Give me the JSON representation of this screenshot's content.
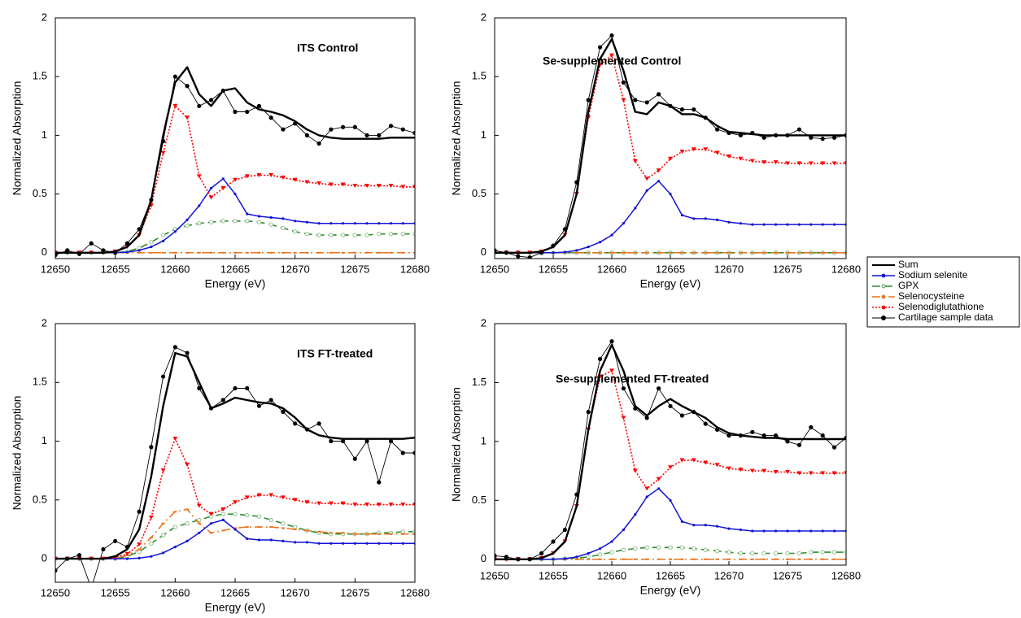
{
  "chart_data": [
    {
      "type": "line",
      "title": "ITS Control",
      "x_label": "Energy (eV)",
      "y_label": "Normalized Absorption",
      "x": [
        12650,
        12651,
        12652,
        12653,
        12654,
        12655,
        12656,
        12657,
        12658,
        12659,
        12660,
        12661,
        12662,
        12663,
        12664,
        12665,
        12666,
        12667,
        12668,
        12669,
        12670,
        12671,
        12672,
        12673,
        12674,
        12675,
        12676,
        12677,
        12678,
        12679,
        12680
      ],
      "xlim": [
        12650,
        12680
      ],
      "xticks": [
        12650,
        12655,
        12660,
        12665,
        12670,
        12675,
        12680
      ],
      "ylim": [
        -0.05,
        2
      ],
      "yticks": [
        0,
        0.5,
        1,
        1.5,
        2
      ],
      "series": [
        {
          "name": "Sum",
          "color": "#000000",
          "values": [
            0,
            0,
            0,
            0,
            0,
            0.01,
            0.05,
            0.15,
            0.45,
            1.0,
            1.45,
            1.58,
            1.35,
            1.25,
            1.38,
            1.4,
            1.28,
            1.22,
            1.2,
            1.17,
            1.12,
            1.05,
            1.0,
            0.98,
            0.97,
            0.97,
            0.97,
            0.97,
            0.98,
            0.98,
            0.98
          ]
        },
        {
          "name": "Sodium selenite",
          "color": "#1414d6",
          "values": [
            0,
            0,
            0,
            0,
            0,
            0,
            0.005,
            0.02,
            0.05,
            0.1,
            0.18,
            0.28,
            0.4,
            0.55,
            0.63,
            0.5,
            0.33,
            0.31,
            0.3,
            0.29,
            0.27,
            0.26,
            0.25,
            0.25,
            0.25,
            0.25,
            0.25,
            0.25,
            0.25,
            0.25,
            0.25
          ]
        },
        {
          "name": "GPX",
          "color": "#2e8b2e",
          "values": [
            0,
            0,
            0,
            0,
            0,
            0,
            0.01,
            0.04,
            0.09,
            0.15,
            0.2,
            0.23,
            0.25,
            0.26,
            0.27,
            0.27,
            0.27,
            0.26,
            0.24,
            0.21,
            0.18,
            0.16,
            0.15,
            0.15,
            0.15,
            0.15,
            0.15,
            0.16,
            0.16,
            0.16,
            0.16
          ]
        },
        {
          "name": "Selenocysteine",
          "color": "#e8731c",
          "values": [
            0,
            0,
            0,
            0,
            0,
            0,
            0,
            0,
            0,
            0,
            0,
            0,
            0,
            0,
            0,
            0,
            0,
            0,
            0,
            0,
            0,
            0,
            0,
            0,
            0,
            0,
            0,
            0,
            0,
            0,
            0
          ]
        },
        {
          "name": "Selenodiglutathione",
          "color": "#ff0000",
          "values": [
            0,
            0,
            0,
            0,
            0,
            0.01,
            0.05,
            0.15,
            0.4,
            0.85,
            1.25,
            1.15,
            0.65,
            0.47,
            0.55,
            0.62,
            0.65,
            0.66,
            0.66,
            0.64,
            0.62,
            0.6,
            0.59,
            0.58,
            0.58,
            0.57,
            0.57,
            0.57,
            0.57,
            0.56,
            0.56
          ]
        },
        {
          "name": "Cartilage sample data",
          "color": "#000000",
          "values": [
            -0.02,
            0.02,
            -0.01,
            0.08,
            0.02,
            0.0,
            0.08,
            0.2,
            0.45,
            0.95,
            1.5,
            1.42,
            1.25,
            1.3,
            1.38,
            1.2,
            1.2,
            1.25,
            1.15,
            1.05,
            1.1,
            1.0,
            0.93,
            1.05,
            1.07,
            1.07,
            1.0,
            1.0,
            1.08,
            1.05,
            1.02
          ]
        }
      ]
    },
    {
      "type": "line",
      "title": "Se-supplemented Control",
      "x_label": "Energy (eV)",
      "y_label": "Normalized Absorption",
      "x": [
        12650,
        12651,
        12652,
        12653,
        12654,
        12655,
        12656,
        12657,
        12658,
        12659,
        12660,
        12661,
        12662,
        12663,
        12664,
        12665,
        12666,
        12667,
        12668,
        12669,
        12670,
        12671,
        12672,
        12673,
        12674,
        12675,
        12676,
        12677,
        12678,
        12679,
        12680
      ],
      "xlim": [
        12650,
        12680
      ],
      "xticks": [
        12650,
        12655,
        12660,
        12665,
        12670,
        12675,
        12680
      ],
      "ylim": [
        -0.05,
        2
      ],
      "yticks": [
        0,
        0.5,
        1,
        1.5,
        2
      ],
      "series": [
        {
          "name": "Sum",
          "color": "#000000",
          "values": [
            0,
            0,
            0,
            0,
            0.01,
            0.05,
            0.15,
            0.5,
            1.2,
            1.65,
            1.82,
            1.55,
            1.2,
            1.18,
            1.28,
            1.25,
            1.18,
            1.18,
            1.15,
            1.08,
            1.03,
            1.02,
            1.01,
            1.0,
            1.0,
            1.0,
            1.0,
            1.0,
            1.0,
            1.0,
            1.0
          ]
        },
        {
          "name": "Sodium selenite",
          "color": "#1414d6",
          "values": [
            0,
            0,
            0,
            0,
            0,
            0,
            0.005,
            0.02,
            0.05,
            0.09,
            0.15,
            0.25,
            0.38,
            0.53,
            0.61,
            0.5,
            0.32,
            0.29,
            0.29,
            0.28,
            0.26,
            0.25,
            0.24,
            0.24,
            0.24,
            0.24,
            0.24,
            0.24,
            0.24,
            0.24,
            0.24
          ]
        },
        {
          "name": "GPX",
          "color": "#2e8b2e",
          "values": [
            0,
            0,
            0,
            0,
            0,
            0,
            0,
            0,
            0,
            0,
            0,
            0,
            0,
            0,
            0,
            0,
            0,
            0,
            0,
            0,
            0,
            0,
            0,
            0,
            0,
            0,
            0,
            0,
            0,
            0,
            0
          ]
        },
        {
          "name": "Selenocysteine",
          "color": "#e8731c",
          "values": [
            0,
            0,
            0,
            0,
            0,
            0,
            0,
            0,
            0,
            0,
            0,
            0,
            0,
            0,
            0,
            0,
            0,
            0,
            0,
            0,
            0,
            0,
            0,
            0,
            0,
            0,
            0,
            0,
            0,
            0,
            0
          ]
        },
        {
          "name": "Selenodiglutathione",
          "color": "#ff0000",
          "values": [
            0,
            0,
            0,
            0,
            0.01,
            0.05,
            0.15,
            0.5,
            1.15,
            1.6,
            1.68,
            1.3,
            0.78,
            0.63,
            0.7,
            0.8,
            0.86,
            0.88,
            0.88,
            0.85,
            0.82,
            0.8,
            0.78,
            0.77,
            0.77,
            0.76,
            0.76,
            0.76,
            0.76,
            0.76,
            0.76
          ]
        },
        {
          "name": "Cartilage sample data",
          "color": "#000000",
          "values": [
            0.02,
            0.0,
            -0.03,
            -0.04,
            0.0,
            0.06,
            0.2,
            0.6,
            1.3,
            1.75,
            1.85,
            1.45,
            1.3,
            1.28,
            1.35,
            1.25,
            1.22,
            1.22,
            1.15,
            1.05,
            1.02,
            1.0,
            1.02,
            0.98,
            1.0,
            1.0,
            1.05,
            0.98,
            0.97,
            0.98,
            1.0
          ]
        }
      ]
    },
    {
      "type": "line",
      "title": "ITS FT-treated",
      "x_label": "Energy (eV)",
      "y_label": "Normalized Absorption",
      "x": [
        12650,
        12651,
        12652,
        12653,
        12654,
        12655,
        12656,
        12657,
        12658,
        12659,
        12660,
        12661,
        12662,
        12663,
        12664,
        12665,
        12666,
        12667,
        12668,
        12669,
        12670,
        12671,
        12672,
        12673,
        12674,
        12675,
        12676,
        12677,
        12678,
        12679,
        12680
      ],
      "xlim": [
        12650,
        12680
      ],
      "xticks": [
        12650,
        12655,
        12660,
        12665,
        12670,
        12675,
        12680
      ],
      "ylim": [
        -0.2,
        2
      ],
      "yticks": [
        0,
        0.5,
        1,
        1.5,
        2
      ],
      "series": [
        {
          "name": "Sum",
          "color": "#000000",
          "values": [
            0,
            0,
            0,
            0,
            0,
            0.02,
            0.08,
            0.25,
            0.7,
            1.3,
            1.75,
            1.72,
            1.5,
            1.28,
            1.32,
            1.37,
            1.35,
            1.33,
            1.32,
            1.28,
            1.2,
            1.1,
            1.05,
            1.03,
            1.02,
            1.02,
            1.02,
            1.02,
            1.02,
            1.02,
            1.03
          ]
        },
        {
          "name": "Sodium selenite",
          "color": "#1414d6",
          "values": [
            0,
            0,
            0,
            0,
            0,
            0,
            0,
            0.005,
            0.02,
            0.05,
            0.1,
            0.15,
            0.22,
            0.3,
            0.33,
            0.25,
            0.17,
            0.16,
            0.16,
            0.15,
            0.14,
            0.14,
            0.13,
            0.13,
            0.13,
            0.13,
            0.13,
            0.13,
            0.13,
            0.13,
            0.13
          ]
        },
        {
          "name": "GPX",
          "color": "#2e8b2e",
          "values": [
            0,
            0,
            0,
            0,
            0,
            0,
            0.02,
            0.06,
            0.13,
            0.2,
            0.27,
            0.3,
            0.33,
            0.36,
            0.38,
            0.38,
            0.37,
            0.36,
            0.33,
            0.3,
            0.27,
            0.24,
            0.22,
            0.21,
            0.21,
            0.21,
            0.21,
            0.22,
            0.22,
            0.23,
            0.23
          ]
        },
        {
          "name": "Selenocysteine",
          "color": "#e8731c",
          "values": [
            0,
            0,
            0,
            0,
            0,
            0,
            0.03,
            0.08,
            0.18,
            0.3,
            0.4,
            0.42,
            0.3,
            0.22,
            0.24,
            0.26,
            0.27,
            0.27,
            0.27,
            0.26,
            0.25,
            0.24,
            0.23,
            0.22,
            0.22,
            0.21,
            0.21,
            0.21,
            0.21,
            0.21,
            0.21
          ]
        },
        {
          "name": "Selenodiglutathione",
          "color": "#ff0000",
          "values": [
            0,
            0,
            0,
            0,
            0,
            0.01,
            0.04,
            0.12,
            0.35,
            0.75,
            1.02,
            0.8,
            0.45,
            0.38,
            0.42,
            0.48,
            0.52,
            0.54,
            0.54,
            0.52,
            0.5,
            0.48,
            0.47,
            0.47,
            0.47,
            0.46,
            0.46,
            0.46,
            0.46,
            0.46,
            0.46
          ]
        },
        {
          "name": "Cartilage sample data",
          "color": "#000000",
          "values": [
            -0.1,
            0.0,
            0.03,
            -0.25,
            0.08,
            0.15,
            0.1,
            0.4,
            0.95,
            1.55,
            1.8,
            1.75,
            1.45,
            1.28,
            1.35,
            1.45,
            1.45,
            1.3,
            1.35,
            1.25,
            1.15,
            1.1,
            1.15,
            1.0,
            1.0,
            0.85,
            1.0,
            0.65,
            1.0,
            0.9,
            0.9
          ]
        }
      ]
    },
    {
      "type": "line",
      "title": "Se-supplemented FT-treated",
      "x_label": "Energy (eV)",
      "y_label": "Normalized Absorption",
      "x": [
        12650,
        12651,
        12652,
        12653,
        12654,
        12655,
        12656,
        12657,
        12658,
        12659,
        12660,
        12661,
        12662,
        12663,
        12664,
        12665,
        12666,
        12667,
        12668,
        12669,
        12670,
        12671,
        12672,
        12673,
        12674,
        12675,
        12676,
        12677,
        12678,
        12679,
        12680
      ],
      "xlim": [
        12650,
        12680
      ],
      "xticks": [
        12650,
        12655,
        12660,
        12665,
        12670,
        12675,
        12680
      ],
      "ylim": [
        -0.05,
        2
      ],
      "yticks": [
        0,
        0.5,
        1,
        1.5,
        2
      ],
      "series": [
        {
          "name": "Sum",
          "color": "#000000",
          "values": [
            0,
            0,
            0,
            0,
            0.01,
            0.05,
            0.15,
            0.45,
            1.1,
            1.6,
            1.82,
            1.6,
            1.3,
            1.22,
            1.3,
            1.36,
            1.3,
            1.25,
            1.2,
            1.12,
            1.07,
            1.05,
            1.04,
            1.03,
            1.03,
            1.02,
            1.02,
            1.02,
            1.02,
            1.02,
            1.02
          ]
        },
        {
          "name": "Sodium selenite",
          "color": "#1414d6",
          "values": [
            0,
            0,
            0,
            0,
            0,
            0,
            0.005,
            0.02,
            0.05,
            0.09,
            0.15,
            0.25,
            0.38,
            0.53,
            0.6,
            0.5,
            0.32,
            0.29,
            0.29,
            0.28,
            0.26,
            0.25,
            0.24,
            0.24,
            0.24,
            0.24,
            0.24,
            0.24,
            0.24,
            0.24,
            0.24
          ]
        },
        {
          "name": "GPX",
          "color": "#2e8b2e",
          "values": [
            0,
            0,
            0,
            0,
            0,
            0,
            0.005,
            0.01,
            0.02,
            0.04,
            0.06,
            0.08,
            0.09,
            0.1,
            0.1,
            0.1,
            0.1,
            0.09,
            0.08,
            0.07,
            0.06,
            0.05,
            0.05,
            0.05,
            0.05,
            0.05,
            0.05,
            0.06,
            0.06,
            0.06,
            0.06
          ]
        },
        {
          "name": "Selenocysteine",
          "color": "#e8731c",
          "values": [
            0,
            0,
            0,
            0,
            0,
            0,
            0,
            0,
            0,
            0,
            0,
            0,
            0,
            0,
            0,
            0,
            0,
            0,
            0,
            0,
            0,
            0,
            0,
            0,
            0,
            0,
            0,
            0,
            0,
            0,
            0
          ]
        },
        {
          "name": "Selenodiglutathione",
          "color": "#ff0000",
          "values": [
            0,
            0,
            0,
            0,
            0.01,
            0.05,
            0.15,
            0.45,
            1.1,
            1.55,
            1.6,
            1.2,
            0.75,
            0.6,
            0.68,
            0.78,
            0.84,
            0.84,
            0.82,
            0.8,
            0.77,
            0.76,
            0.75,
            0.75,
            0.74,
            0.74,
            0.73,
            0.73,
            0.73,
            0.73,
            0.73
          ]
        },
        {
          "name": "Cartilage sample data",
          "color": "#000000",
          "values": [
            0.03,
            0.02,
            0.0,
            0.0,
            0.05,
            0.15,
            0.25,
            0.55,
            1.25,
            1.7,
            1.85,
            1.45,
            1.28,
            1.2,
            1.45,
            1.3,
            1.22,
            1.25,
            1.15,
            1.1,
            1.05,
            1.05,
            1.08,
            1.05,
            1.05,
            1.0,
            0.97,
            1.12,
            1.05,
            0.95,
            1.03
          ]
        }
      ]
    }
  ]
}
